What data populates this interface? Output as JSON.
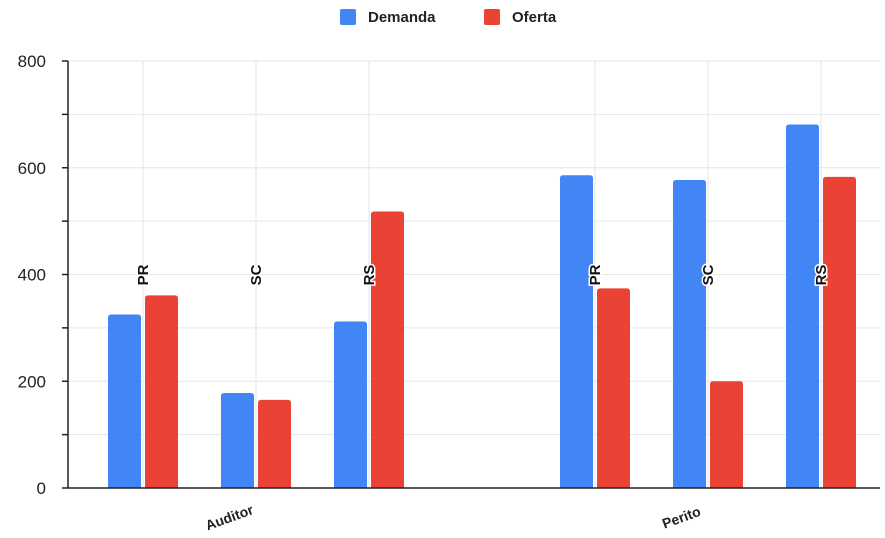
{
  "chart_data": {
    "type": "bar",
    "title": "",
    "xlabel": "",
    "ylabel": "",
    "ylim": [
      0,
      800
    ],
    "y_ticks": [
      0,
      200,
      400,
      600,
      800
    ],
    "y_tick_labels": [
      "0",
      "200",
      "400",
      "600",
      "800"
    ],
    "grid": true,
    "legend_position": "top-center",
    "groups": [
      {
        "label": "Auditor",
        "states": [
          "PR",
          "SC",
          "RS"
        ]
      },
      {
        "label": "Perito",
        "states": [
          "PR",
          "SC",
          "RS"
        ]
      }
    ],
    "series": [
      {
        "name": "Demanda",
        "color": "#4285f4",
        "values": [
          325,
          178,
          312,
          586,
          577,
          681
        ]
      },
      {
        "name": "Oferta",
        "color": "#ea4335",
        "values": [
          361,
          165,
          518,
          374,
          200,
          583
        ]
      }
    ]
  }
}
